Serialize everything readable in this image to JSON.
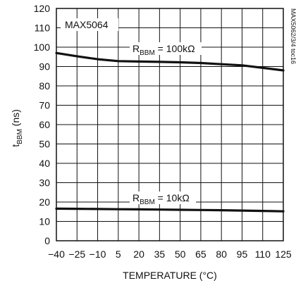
{
  "chart_data": {
    "type": "line",
    "title": "",
    "device_label": "MAX5064",
    "side_label": "MAX5062/3/4 toc16",
    "xlabel": "TEMPERATURE (°C)",
    "ylabel": {
      "main": "t",
      "sub": "BBM",
      "suffix": " (ns)"
    },
    "xlim": [
      -40,
      125
    ],
    "ylim": [
      0,
      120
    ],
    "x_ticks": [
      -40,
      -25,
      -10,
      5,
      20,
      35,
      50,
      65,
      80,
      95,
      110,
      125
    ],
    "y_ticks": [
      0,
      10,
      20,
      30,
      40,
      50,
      60,
      70,
      80,
      90,
      100,
      110,
      120
    ],
    "grid": true,
    "series": [
      {
        "name": "RBBM = 100kΩ",
        "label_main": "R",
        "label_sub": "BBM",
        "label_rest": " = 100kΩ",
        "x": [
          -40,
          -25,
          -10,
          5,
          20,
          35,
          50,
          65,
          80,
          95,
          110,
          125
        ],
        "y": [
          97,
          95.3,
          93.8,
          92.8,
          92.6,
          92.4,
          92.2,
          91.8,
          91.2,
          90.6,
          89.3,
          88
        ]
      },
      {
        "name": "RBBM = 10kΩ",
        "label_main": "R",
        "label_sub": "BBM",
        "label_rest": " = 10kΩ",
        "x": [
          -40,
          -25,
          -10,
          5,
          20,
          35,
          50,
          65,
          80,
          95,
          110,
          125
        ],
        "y": [
          16.6,
          16.5,
          16.4,
          16.3,
          16.2,
          16.1,
          16.0,
          15.9,
          15.8,
          15.6,
          15.4,
          15.2
        ]
      }
    ]
  }
}
